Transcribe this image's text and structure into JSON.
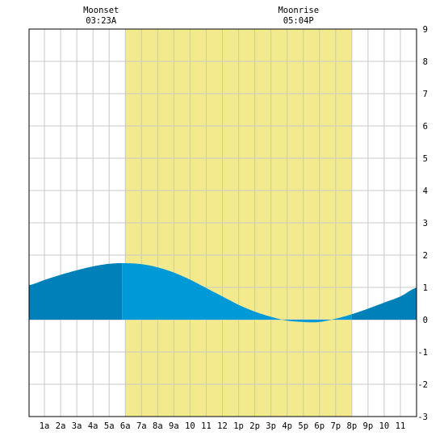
{
  "chart_data": {
    "type": "area",
    "title": "",
    "xlabel": "",
    "ylabel": "",
    "xlim": [
      0.05,
      24.0
    ],
    "ylim": [
      -3,
      9
    ],
    "grid": true,
    "x_tick_labels": [
      {
        "x": 1,
        "label": "1a"
      },
      {
        "x": 2,
        "label": "2a"
      },
      {
        "x": 3,
        "label": "3a"
      },
      {
        "x": 4,
        "label": "4a"
      },
      {
        "x": 5,
        "label": "5a"
      },
      {
        "x": 6,
        "label": "6a"
      },
      {
        "x": 7,
        "label": "7a"
      },
      {
        "x": 8,
        "label": "8a"
      },
      {
        "x": 9,
        "label": "9a"
      },
      {
        "x": 10,
        "label": "10"
      },
      {
        "x": 11,
        "label": "11"
      },
      {
        "x": 12,
        "label": "12"
      },
      {
        "x": 13,
        "label": "1p"
      },
      {
        "x": 14,
        "label": "2p"
      },
      {
        "x": 15,
        "label": "3p"
      },
      {
        "x": 16,
        "label": "4p"
      },
      {
        "x": 17,
        "label": "5p"
      },
      {
        "x": 18,
        "label": "6p"
      },
      {
        "x": 19,
        "label": "7p"
      },
      {
        "x": 20,
        "label": "8p"
      },
      {
        "x": 21,
        "label": "9p"
      },
      {
        "x": 22,
        "label": "10"
      },
      {
        "x": 23,
        "label": "11"
      }
    ],
    "y_tick_labels": [
      "-3",
      "-2",
      "-1",
      "0",
      "1",
      "2",
      "3",
      "4",
      "5",
      "6",
      "7",
      "8",
      "9"
    ],
    "daylight": {
      "start_hour": 6.0,
      "end_hour": 20.0
    },
    "night_boundary_hour": 5.8,
    "tide_curve": {
      "x": [
        0.05,
        1,
        2,
        3,
        4,
        5,
        5.9,
        7,
        8,
        9,
        10,
        11,
        12,
        13,
        14,
        15,
        16,
        17,
        17.4,
        18,
        19,
        20,
        21,
        22,
        23,
        24.0
      ],
      "y": [
        1.07,
        1.23,
        1.39,
        1.53,
        1.65,
        1.73,
        1.75,
        1.72,
        1.62,
        1.46,
        1.24,
        0.98,
        0.72,
        0.46,
        0.25,
        0.09,
        -0.03,
        -0.07,
        -0.08,
        -0.07,
        0.03,
        0.17,
        0.34,
        0.53,
        0.72,
        0.99
      ]
    },
    "moon_events": [
      {
        "name": "Moonset",
        "time": "03:23A",
        "hour": 6.0
      },
      {
        "name": "Moonrise",
        "time": "05:04P",
        "hour": 18.2
      }
    ]
  },
  "colors": {
    "daylight": "#f2ea8d",
    "tide_night": "#0080b8",
    "tide_day": "#0099d8",
    "grid": "#c8c8c8",
    "border": "#000000",
    "background": "#ffffff"
  }
}
